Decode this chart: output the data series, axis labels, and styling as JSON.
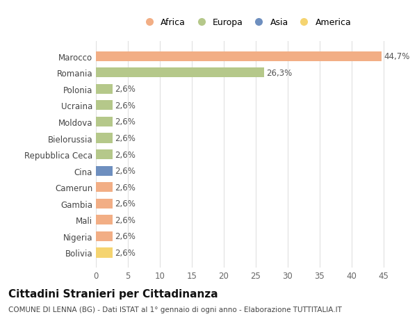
{
  "categories": [
    "Marocco",
    "Romania",
    "Polonia",
    "Ucraina",
    "Moldova",
    "Bielorussia",
    "Repubblica Ceca",
    "Cina",
    "Camerun",
    "Gambia",
    "Mali",
    "Nigeria",
    "Bolivia"
  ],
  "values": [
    44.7,
    26.3,
    2.6,
    2.6,
    2.6,
    2.6,
    2.6,
    2.6,
    2.6,
    2.6,
    2.6,
    2.6,
    2.6
  ],
  "labels": [
    "44,7%",
    "26,3%",
    "2,6%",
    "2,6%",
    "2,6%",
    "2,6%",
    "2,6%",
    "2,6%",
    "2,6%",
    "2,6%",
    "2,6%",
    "2,6%",
    "2,6%"
  ],
  "colors": [
    "#F2AE85",
    "#B5C88A",
    "#B5C88A",
    "#B5C88A",
    "#B5C88A",
    "#B5C88A",
    "#B5C88A",
    "#6E8FBF",
    "#F2AE85",
    "#F2AE85",
    "#F2AE85",
    "#F2AE85",
    "#F5D470"
  ],
  "legend": [
    {
      "label": "Africa",
      "color": "#F2AE85"
    },
    {
      "label": "Europa",
      "color": "#B5C88A"
    },
    {
      "label": "Asia",
      "color": "#6E8FBF"
    },
    {
      "label": "America",
      "color": "#F5D470"
    }
  ],
  "xlim": [
    0,
    47
  ],
  "xticks": [
    0,
    5,
    10,
    15,
    20,
    25,
    30,
    35,
    40,
    45
  ],
  "title": "Cittadini Stranieri per Cittadinanza",
  "subtitle": "COMUNE DI LENNA (BG) - Dati ISTAT al 1° gennaio di ogni anno - Elaborazione TUTTITALIA.IT",
  "bg_color": "#ffffff",
  "grid_color": "#e0e0e0",
  "bar_height": 0.6,
  "label_fontsize": 8.5,
  "tick_fontsize": 8.5,
  "title_fontsize": 11,
  "subtitle_fontsize": 7.5,
  "legend_fontsize": 9
}
